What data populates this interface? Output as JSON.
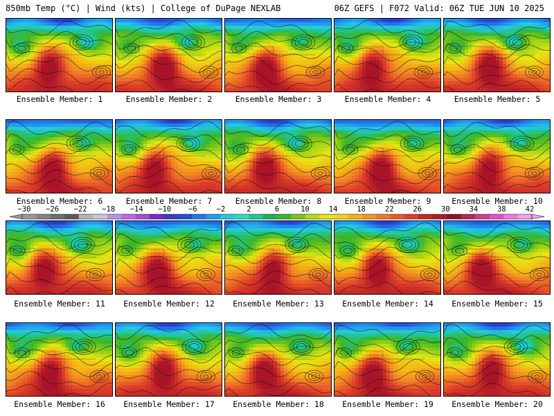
{
  "header": {
    "left": "850mb Temp (°C) | Wind (kts) | College of DuPage NEXLAB",
    "right": "06Z GEFS | F072 Valid: 06Z TUE JUN 10 2025"
  },
  "colorbar": {
    "tick_labels": [
      "−30",
      "−26",
      "−22",
      "−18",
      "−14",
      "−10",
      "−6",
      "−2",
      "2",
      "6",
      "10",
      "14",
      "18",
      "22",
      "26",
      "30",
      "34",
      "38",
      "42"
    ],
    "colors": [
      "#9a9a9a",
      "#848484",
      "#6e6e6e",
      "#5a5a5a",
      "#b4b4b4",
      "#c8c8dc",
      "#b496e6",
      "#c864e6",
      "#a050d2",
      "#7828c8",
      "#3c3cc8",
      "#1e50dc",
      "#1e78f0",
      "#1ea0f0",
      "#28c8e6",
      "#28dcc8",
      "#1ec896",
      "#14b45a",
      "#3cb428",
      "#78c81e",
      "#b4dc14",
      "#e6e614",
      "#f5d214",
      "#f5b414",
      "#f5961e",
      "#f07828",
      "#e65a28",
      "#dc3c28",
      "#c82828",
      "#aa1e28",
      "#8c1428",
      "#b4285a",
      "#d23c96",
      "#e650c8",
      "#f078dc",
      "#f5a0e6"
    ]
  },
  "members": [
    {
      "label": "Ensemble Member: 1"
    },
    {
      "label": "Ensemble Member: 2"
    },
    {
      "label": "Ensemble Member: 3"
    },
    {
      "label": "Ensemble Member: 4"
    },
    {
      "label": "Ensemble Member: 5"
    },
    {
      "label": "Ensemble Member: 6"
    },
    {
      "label": "Ensemble Member: 7"
    },
    {
      "label": "Ensemble Member: 8"
    },
    {
      "label": "Ensemble Member: 9"
    },
    {
      "label": "Ensemble Member: 10"
    },
    {
      "label": "Ensemble Member: 11"
    },
    {
      "label": "Ensemble Member: 12"
    },
    {
      "label": "Ensemble Member: 13"
    },
    {
      "label": "Ensemble Member: 14"
    },
    {
      "label": "Ensemble Member: 15"
    },
    {
      "label": "Ensemble Member: 16"
    },
    {
      "label": "Ensemble Member: 17"
    },
    {
      "label": "Ensemble Member: 18"
    },
    {
      "label": "Ensemble Member: 19"
    },
    {
      "label": "Ensemble Member: 20"
    }
  ]
}
